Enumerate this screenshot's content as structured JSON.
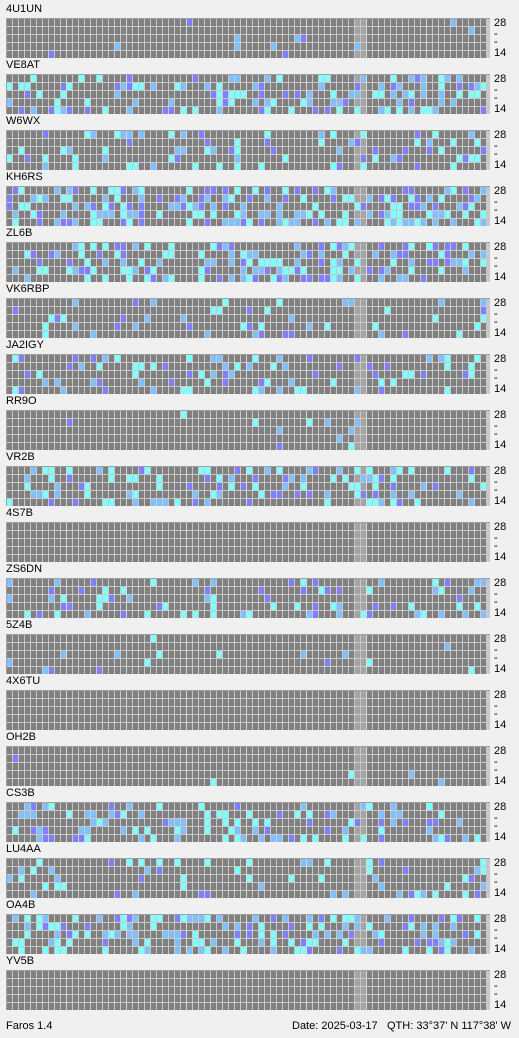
{
  "palette": {
    "background": "#f0f0f0",
    "grid_line": "#c8c8c8",
    "empty": "#808080",
    "unavailable": "#a4a4a4",
    "signal_weak": "#8080ff",
    "signal_mid": "#80c0ff",
    "signal_strong": "#80ffff"
  },
  "band_axis": {
    "top_label": "28",
    "bottom_label": "14",
    "tick_mark": "-"
  },
  "beacons": [
    {
      "callsign": "4U1UN",
      "seed": 3,
      "density": 0.02
    },
    {
      "callsign": "VE8AT",
      "seed": 7,
      "density": 0.32
    },
    {
      "callsign": "W6WX",
      "seed": 11,
      "density": 0.18
    },
    {
      "callsign": "KH6RS",
      "seed": 13,
      "density": 0.38
    },
    {
      "callsign": "ZL6B",
      "seed": 17,
      "density": 0.36
    },
    {
      "callsign": "VK6RBP",
      "seed": 19,
      "density": 0.12
    },
    {
      "callsign": "JA2IGY",
      "seed": 23,
      "density": 0.2
    },
    {
      "callsign": "RR9O",
      "seed": 29,
      "density": 0.03
    },
    {
      "callsign": "VR2B",
      "seed": 31,
      "density": 0.24
    },
    {
      "callsign": "4S7B",
      "seed": 37,
      "density": 0.0
    },
    {
      "callsign": "ZS6DN",
      "seed": 41,
      "density": 0.16
    },
    {
      "callsign": "5Z4B",
      "seed": 43,
      "density": 0.03
    },
    {
      "callsign": "4X6TU",
      "seed": 47,
      "density": 0.0
    },
    {
      "callsign": "OH2B",
      "seed": 53,
      "density": 0.02
    },
    {
      "callsign": "CS3B",
      "seed": 59,
      "density": 0.26
    },
    {
      "callsign": "LU4AA",
      "seed": 61,
      "density": 0.18
    },
    {
      "callsign": "OA4B",
      "seed": 67,
      "density": 0.34
    },
    {
      "callsign": "YV5B",
      "seed": 71,
      "density": 0.0
    }
  ],
  "status": {
    "app_name": "Faros 1.4",
    "date": "Date: 2025-03-17",
    "qth": "QTH: 33°37' N  117°38' W"
  }
}
